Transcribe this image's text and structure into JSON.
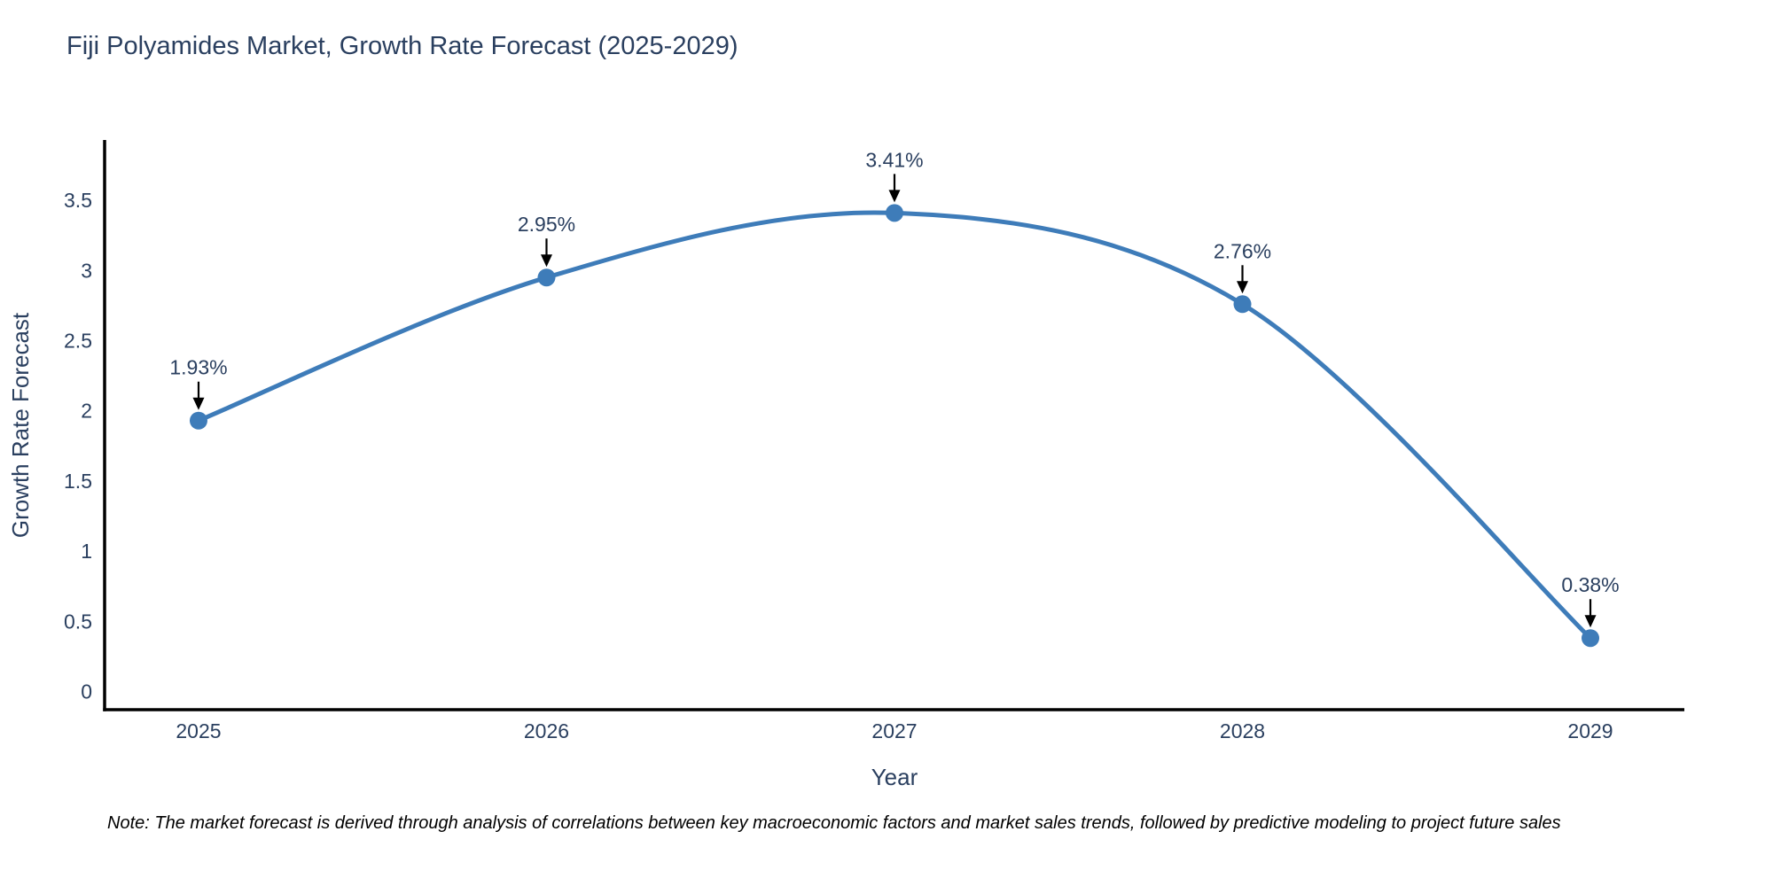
{
  "header": {
    "title": "Fiji Polyamides Market, Growth Rate Forecast (2025-2029)"
  },
  "footnote": {
    "text": "Note: The market forecast is derived through analysis of correlations between key macroeconomic factors and market sales trends, followed by predictive modeling to project future sales"
  },
  "chart_data": {
    "type": "line",
    "title": "Fiji Polyamides Market, Growth Rate Forecast (2025-2029)",
    "x": [
      2025,
      2026,
      2027,
      2028,
      2029
    ],
    "xticks": [
      "2025",
      "2026",
      "2027",
      "2028",
      "2029"
    ],
    "series": [
      {
        "name": "Growth Rate Forecast",
        "values": [
          1.93,
          2.95,
          3.41,
          2.76,
          0.38
        ]
      }
    ],
    "point_labels": [
      "1.93%",
      "2.95%",
      "3.41%",
      "2.76%",
      "0.38%"
    ],
    "xlabel": "Year",
    "ylabel": "Growth Rate Forecast",
    "yticks": [
      0,
      0.5,
      1,
      1.5,
      2,
      2.5,
      3,
      3.5
    ],
    "ylim": [
      -0.13,
      3.93
    ],
    "xlim": [
      2024.73,
      2029.27
    ],
    "line_shape": "spline",
    "grid": false,
    "legend": "none",
    "line_color": "#3e7cb9",
    "marker_color": "#3e7cb9",
    "marker_size": 20,
    "line_width": 5,
    "axis_color": "#000000",
    "text_color": "#2a3f5f",
    "annotation_arrow_color": "#000000",
    "background": "#ffffff"
  }
}
